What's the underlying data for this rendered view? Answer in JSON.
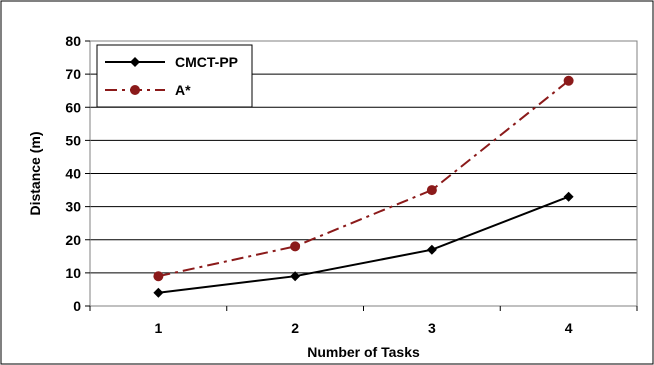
{
  "chart_data": {
    "type": "line",
    "title": "",
    "xlabel": "Number of Tasks",
    "ylabel": "Distance (m)",
    "categories": [
      "1",
      "2",
      "3",
      "4"
    ],
    "x": [
      1,
      2,
      3,
      4
    ],
    "ylim": [
      0,
      80
    ],
    "yticks": [
      0,
      10,
      20,
      30,
      40,
      50,
      60,
      70,
      80
    ],
    "grid": true,
    "legend_position": "top-left",
    "series": [
      {
        "name": "CMCT-PP",
        "values": [
          4,
          9,
          17,
          33
        ],
        "color": "#000000",
        "marker": "diamond",
        "line_style": "solid"
      },
      {
        "name": "A*",
        "values": [
          9,
          18,
          35,
          68
        ],
        "color": "#8B1A1A",
        "marker": "circle",
        "line_style": "dash-dot"
      }
    ]
  }
}
